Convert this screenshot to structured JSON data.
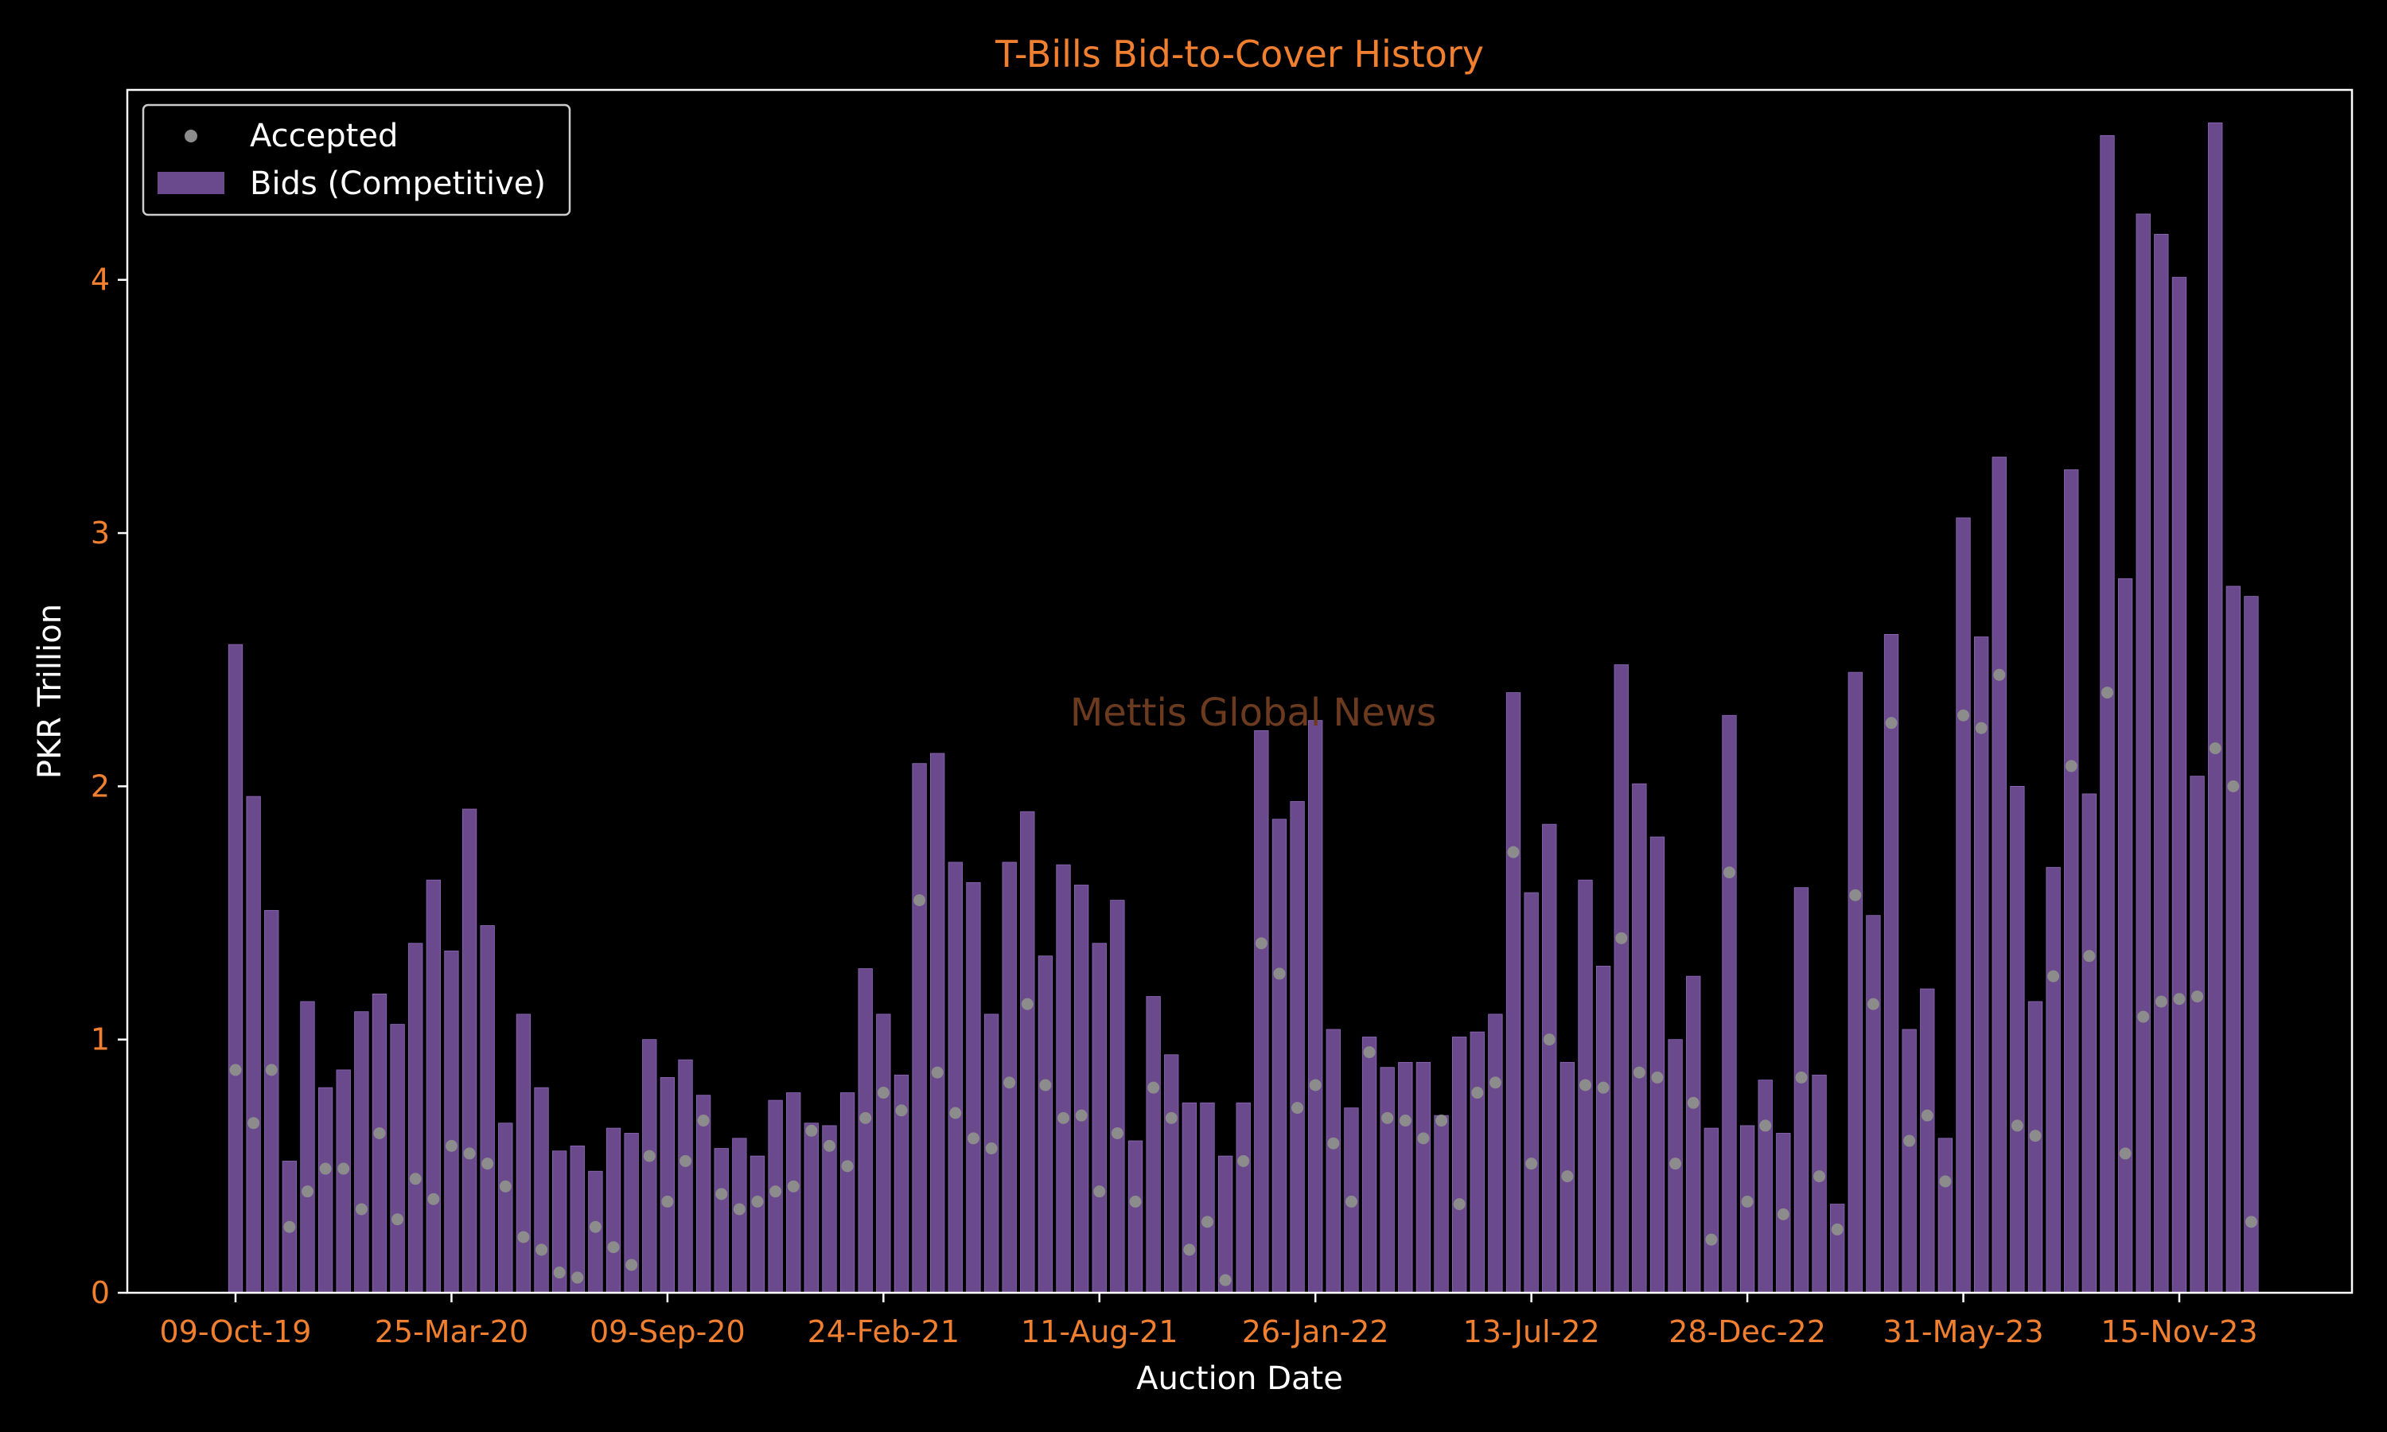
{
  "colors": {
    "background": "#000000",
    "bar": "#6a4a8c",
    "bar_edge": "#8f6bb8",
    "point": "#8c8c8c",
    "accent": "#f07f2f",
    "text": "#ffffff",
    "axes": "#ffffff",
    "watermark": "#6b3a1f"
  },
  "watermark": "Mettis Global News",
  "chart_data": {
    "type": "bar",
    "title": "T-Bills Bid-to-Cover History",
    "xlabel": "Auction Date",
    "ylabel": "PKR Trillion",
    "ylim": [
      0,
      4.75
    ],
    "yticks": [
      0,
      1,
      2,
      3,
      4
    ],
    "xticks": [
      {
        "index": 0,
        "label": "09-Oct-19"
      },
      {
        "index": 12,
        "label": "25-Mar-20"
      },
      {
        "index": 24,
        "label": "09-Sep-20"
      },
      {
        "index": 36,
        "label": "24-Feb-21"
      },
      {
        "index": 48,
        "label": "11-Aug-21"
      },
      {
        "index": 60,
        "label": "26-Jan-22"
      },
      {
        "index": 72,
        "label": "13-Jul-22"
      },
      {
        "index": 84,
        "label": "28-Dec-22"
      },
      {
        "index": 96,
        "label": "31-May-23"
      },
      {
        "index": 108,
        "label": "15-Nov-23"
      }
    ],
    "legend": {
      "position": "upper-left",
      "entries": [
        "Accepted",
        "Bids (Competitive)"
      ]
    },
    "grid": false,
    "series": [
      {
        "name": "Bids (Competitive)",
        "type": "bar",
        "values": [
          2.56,
          1.96,
          1.51,
          0.52,
          1.15,
          0.81,
          0.88,
          1.11,
          1.18,
          1.06,
          1.38,
          1.63,
          1.35,
          1.91,
          1.45,
          0.67,
          1.1,
          0.81,
          0.56,
          0.58,
          0.48,
          0.65,
          0.63,
          1.0,
          0.85,
          0.92,
          0.78,
          0.57,
          0.61,
          0.54,
          0.76,
          0.79,
          0.67,
          0.66,
          0.79,
          1.28,
          1.1,
          0.86,
          2.09,
          2.13,
          1.7,
          1.62,
          1.1,
          1.7,
          1.9,
          1.33,
          1.69,
          1.61,
          1.38,
          1.55,
          0.6,
          1.17,
          0.94,
          0.75,
          0.75,
          0.54,
          0.75,
          2.22,
          1.87,
          1.94,
          2.26,
          1.04,
          0.73,
          1.01,
          0.89,
          0.91,
          0.91,
          0.7,
          1.01,
          1.03,
          1.1,
          2.37,
          1.58,
          1.85,
          0.91,
          1.63,
          1.29,
          2.48,
          2.01,
          1.8,
          1.0,
          1.25,
          0.65,
          2.28,
          0.66,
          0.84,
          0.63,
          1.6,
          0.86,
          0.35,
          2.45,
          1.49,
          2.6,
          1.04,
          1.2,
          0.61,
          3.06,
          2.59,
          3.3,
          2.0,
          1.15,
          1.68,
          3.25,
          1.97,
          4.57,
          2.82,
          4.26,
          4.18,
          4.01,
          2.04,
          4.62,
          2.79,
          2.75
        ]
      },
      {
        "name": "Accepted",
        "type": "scatter",
        "values": [
          0.88,
          0.67,
          0.88,
          0.26,
          0.4,
          0.49,
          0.49,
          0.33,
          0.63,
          0.29,
          0.45,
          0.37,
          0.58,
          0.55,
          0.51,
          0.42,
          0.22,
          0.17,
          0.08,
          0.06,
          0.26,
          0.18,
          0.11,
          0.54,
          0.36,
          0.52,
          0.68,
          0.39,
          0.33,
          0.36,
          0.4,
          0.42,
          0.64,
          0.58,
          0.5,
          0.69,
          0.79,
          0.72,
          1.55,
          0.87,
          0.71,
          0.61,
          0.57,
          0.83,
          1.14,
          0.82,
          0.69,
          0.7,
          0.4,
          0.63,
          0.36,
          0.81,
          0.69,
          0.17,
          0.28,
          0.05,
          0.52,
          1.38,
          1.26,
          0.73,
          0.82,
          0.59,
          0.36,
          0.95,
          0.69,
          0.68,
          0.61,
          0.68,
          0.35,
          0.79,
          0.83,
          1.74,
          0.51,
          1.0,
          0.46,
          0.82,
          0.81,
          1.4,
          0.87,
          0.85,
          0.51,
          0.75,
          0.21,
          1.66,
          0.36,
          0.66,
          0.31,
          0.85,
          0.46,
          0.25,
          1.57,
          1.14,
          2.25,
          0.6,
          0.7,
          0.44,
          2.28,
          2.23,
          2.44,
          0.66,
          0.62,
          1.25,
          2.08,
          1.33,
          2.37,
          0.55,
          1.09,
          1.15,
          1.16,
          1.17,
          2.15,
          2.0,
          0.28
        ]
      }
    ]
  }
}
